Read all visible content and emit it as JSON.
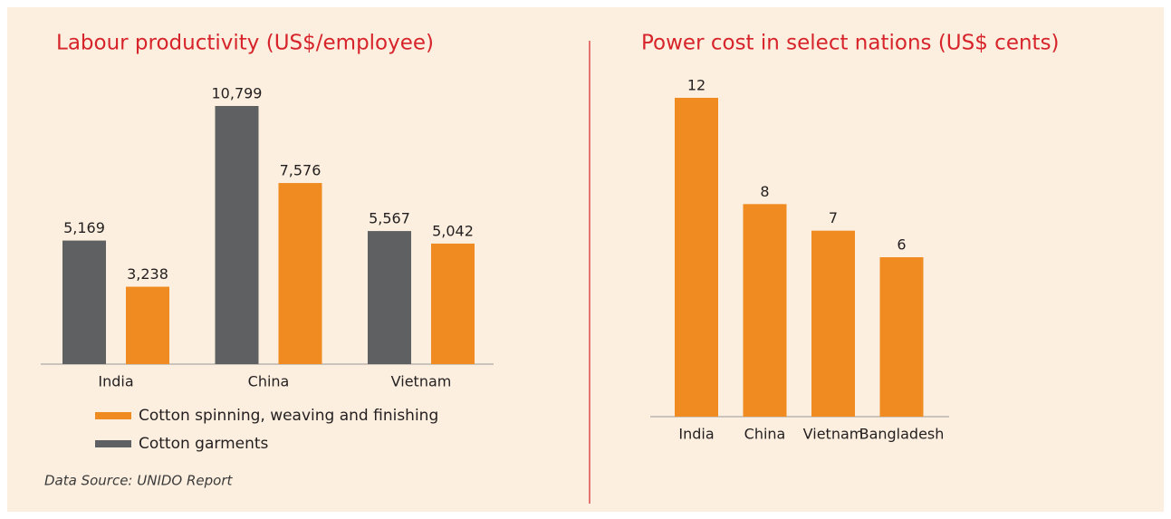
{
  "chart_data": [
    {
      "type": "bar",
      "title": "Labour productivity (US$/employee)",
      "categories": [
        "India",
        "China",
        "Vietnam"
      ],
      "series": [
        {
          "name": "Cotton garments",
          "color": "#5f6062",
          "values": [
            5169,
            10799,
            5567
          ],
          "value_labels": [
            "5,169",
            "10,799",
            "5,567"
          ]
        },
        {
          "name": "Cotton spinning, weaving and finishing",
          "color": "#f08b22",
          "values": [
            3238,
            7576,
            5042
          ],
          "value_labels": [
            "3,238",
            "7,576",
            "5,042"
          ]
        }
      ],
      "source": "Data Source: UNIDO Report"
    },
    {
      "type": "bar",
      "title": "Power cost in select nations (US$ cents)",
      "categories": [
        "India",
        "China",
        "Vietnam",
        "Bangladesh"
      ],
      "values": [
        12,
        8,
        7,
        6
      ],
      "color": "#f08b22"
    }
  ]
}
